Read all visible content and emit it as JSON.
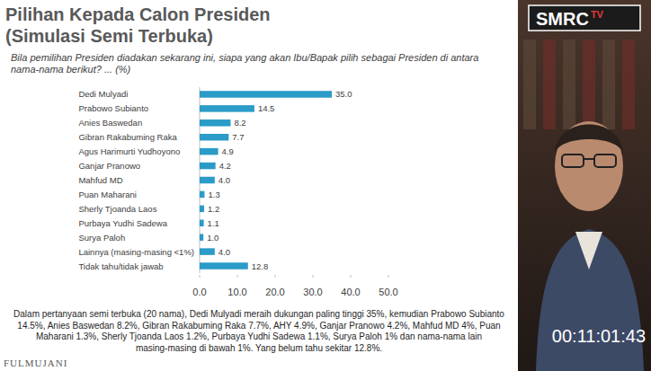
{
  "chart_data": {
    "type": "bar",
    "orientation": "horizontal",
    "title": "Pilihan Kepada Calon Presiden (Simulasi Semi Terbuka)",
    "subtitle": "Bila pemilihan Presiden diadakan sekarang ini, siapa yang akan Ibu/Bapak pilih sebagai Presiden di antara nama-nama berikut? ... (%)",
    "categories": [
      "Dedi Mulyadi",
      "Prabowo Subianto",
      "Anies Baswedan",
      "Gibran Rakabuming Raka",
      "Agus Harimurti Yudhoyono",
      "Ganjar Pranowo",
      "Mahfud MD",
      "Puan Maharani",
      "Sherly Tjoanda Laos",
      "Purbaya Yudhi Sadewa",
      "Surya Paloh",
      "Lainnya (masing-masing <1%)",
      "Tidak tahu/tidak jawab"
    ],
    "values": [
      35.0,
      14.5,
      8.2,
      7.7,
      4.9,
      4.2,
      4.0,
      1.3,
      1.2,
      1.1,
      1.0,
      4.0,
      12.8
    ],
    "value_labels": [
      "35.0",
      "14.5",
      "8.2",
      "7.7",
      "4.9",
      "4.2",
      "4.0",
      "1.3",
      "1.2",
      "1.1",
      "1.0",
      "4.0",
      "12.8"
    ],
    "color": "#2b9bc8",
    "xlim": [
      0,
      50
    ],
    "xticks": [
      {
        "value": 0,
        "label": "0.0"
      },
      {
        "value": 10,
        "label": "10.0"
      },
      {
        "value": 20,
        "label": "20.0"
      },
      {
        "value": 30,
        "label": "30.0"
      },
      {
        "value": 40,
        "label": "40.0"
      },
      {
        "value": 50,
        "label": "50.0"
      }
    ],
    "grid": false,
    "data_labels": true,
    "annotations": [
      "Dalam pertanyaan semi terbuka (20 nama), Dedi Mulyadi meraih dukungan paling tinggi 35%, kemudian Prabowo Subianto 14.5%, Anies Baswedan 8.2%, Gibran Rakabuming Raka 7.7%, AHY 4.9%, Ganjar Pranowo 4.2%, Mahfud MD 4%, Puan Maharani 1.3%, Sherly Tjoanda Laos 1.2%, Purbaya Yudhi Sadewa 1.1%, Surya Paloh 1% dan nama-nama lain masing-masing di bawah 1%. Yang belum tahu sekitar 12.8%."
    ]
  },
  "overlay": {
    "logo": "SMRC",
    "logo_suffix": "TV",
    "timestamp": "00:11:01:43",
    "footer": "FULMUJANI"
  }
}
